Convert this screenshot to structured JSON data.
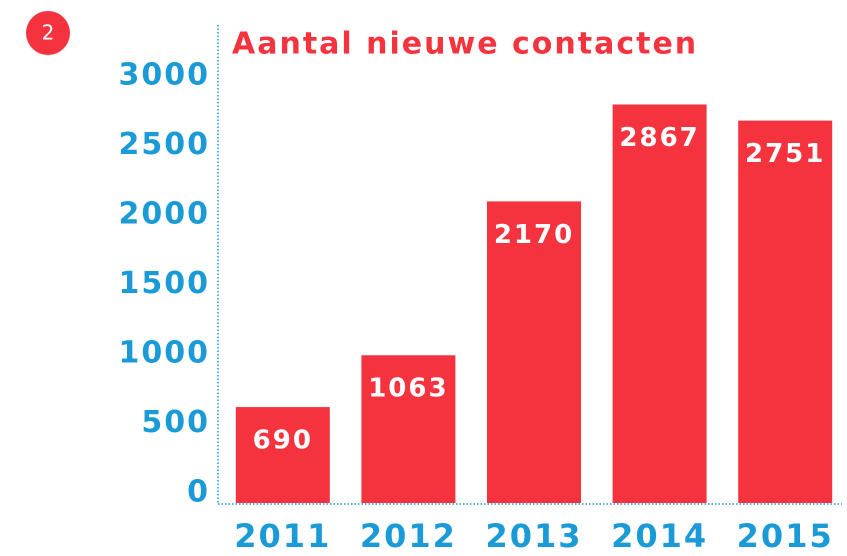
{
  "badge": "2",
  "chart_data": {
    "type": "bar",
    "title": "Aantal nieuwe contacten",
    "categories": [
      "2011",
      "2012",
      "2013",
      "2014",
      "2015"
    ],
    "values": [
      690,
      1063,
      2170,
      2867,
      2751
    ],
    "color": "#f5333f",
    "ylim": [
      0,
      3000
    ],
    "yticks": [
      0,
      500,
      1000,
      1500,
      2000,
      2500,
      3000
    ],
    "grid": false
  }
}
